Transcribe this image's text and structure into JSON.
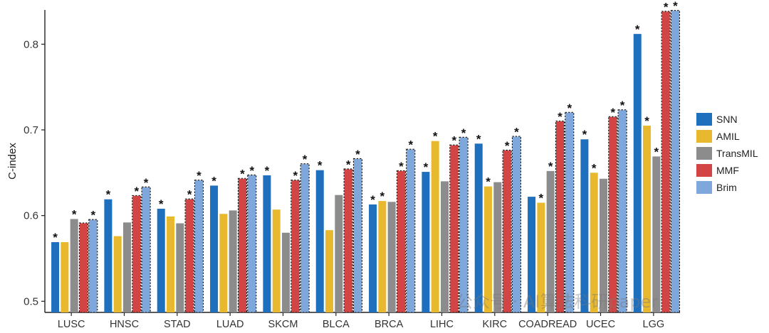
{
  "chart_data": {
    "type": "bar",
    "ylabel": "C-index",
    "ylim": [
      0.487,
      0.84
    ],
    "yticks": [
      0.5,
      0.6,
      0.7,
      0.8
    ],
    "ytick_labels": [
      "0.5",
      "0.6",
      "0.7",
      "0.8"
    ],
    "significance_marker": "*",
    "categories": [
      "LUSC",
      "HNSC",
      "STAD",
      "LUAD",
      "SKCM",
      "BLCA",
      "BRCA",
      "LIHC",
      "KIRC",
      "COADREAD",
      "UCEC",
      "LGG"
    ],
    "series": [
      {
        "name": "SNN",
        "color": "#1f6fbf",
        "values": [
          0.569,
          0.619,
          0.608,
          0.635,
          0.647,
          0.653,
          0.613,
          0.651,
          0.684,
          0.622,
          0.689,
          0.812
        ],
        "stars": [
          true,
          true,
          true,
          true,
          true,
          true,
          true,
          true,
          true,
          false,
          true,
          true
        ]
      },
      {
        "name": "AMIL",
        "color": "#e8b92e",
        "values": [
          0.569,
          0.576,
          0.599,
          0.602,
          0.607,
          0.583,
          0.617,
          0.687,
          0.634,
          0.615,
          0.65,
          0.705
        ],
        "stars": [
          false,
          false,
          false,
          false,
          false,
          false,
          true,
          true,
          true,
          true,
          true,
          true
        ]
      },
      {
        "name": "TransMIL",
        "color": "#8c8c8c",
        "values": [
          0.596,
          0.592,
          0.591,
          0.606,
          0.58,
          0.624,
          0.616,
          0.64,
          0.639,
          0.652,
          0.643,
          0.669
        ],
        "stars": [
          true,
          false,
          false,
          false,
          false,
          false,
          false,
          false,
          false,
          true,
          false,
          true
        ]
      },
      {
        "name": "MMF",
        "color": "#d34545",
        "values": [
          0.591,
          0.623,
          0.619,
          0.643,
          0.641,
          0.654,
          0.652,
          0.682,
          0.676,
          0.71,
          0.715,
          0.838
        ],
        "stars": [
          false,
          true,
          true,
          true,
          true,
          true,
          true,
          true,
          true,
          true,
          true,
          true
        ]
      },
      {
        "name": "Brim",
        "color": "#7ea7db",
        "values": [
          0.595,
          0.633,
          0.641,
          0.647,
          0.66,
          0.666,
          0.677,
          0.691,
          0.692,
          0.72,
          0.723,
          0.839
        ],
        "stars": [
          true,
          true,
          true,
          true,
          true,
          true,
          true,
          true,
          true,
          true,
          true,
          true
        ]
      }
    ],
    "dashed_outline_series": [
      "MMF",
      "Brim"
    ],
    "legend_position": "right"
  },
  "watermark": "公众号 · AI算法科研paper"
}
